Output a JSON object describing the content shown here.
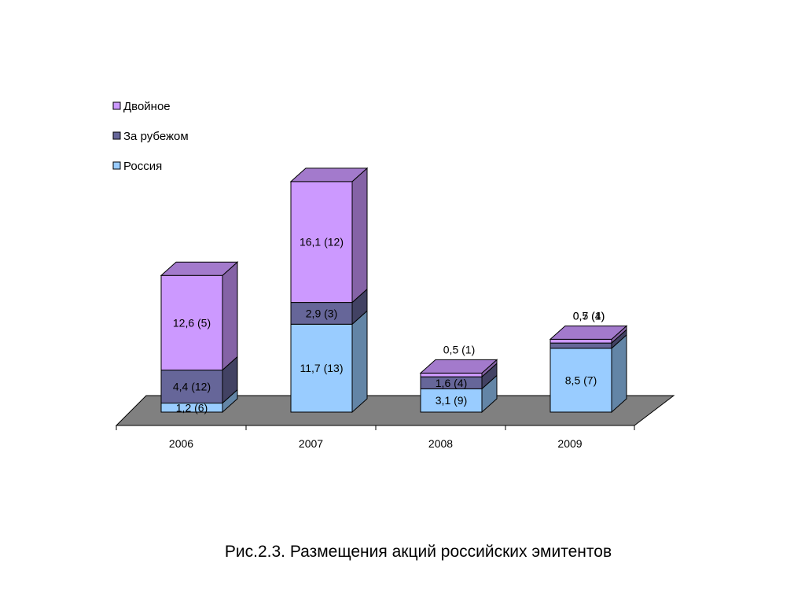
{
  "chart_data": {
    "type": "bar",
    "stacked": true,
    "three_d": true,
    "categories": [
      "2006",
      "2007",
      "2008",
      "2009"
    ],
    "series": [
      {
        "name": "Россия",
        "values": [
          1.2,
          11.7,
          3.1,
          8.5
        ],
        "labels": [
          "1,2 (6)",
          "11,7 (13)",
          "3,1 (9)",
          "8,5 (7)"
        ],
        "color": "#99ccff"
      },
      {
        "name": "За рубежом",
        "values": [
          4.4,
          2.9,
          1.6,
          0.7
        ],
        "labels": [
          "4,4 (12)",
          "2,9 (3)",
          "1,6 (4)",
          "0,7 (4)"
        ],
        "color": "#666699"
      },
      {
        "name": "Двойное",
        "values": [
          12.6,
          16.1,
          0.5,
          0.5
        ],
        "labels": [
          "12,6 (5)",
          "16,1 (12)",
          "0,5 (1)",
          "0,5 (1)"
        ],
        "color": "#cc99ff"
      }
    ],
    "legend_position": "top-left",
    "grid": false,
    "ylim": [
      0,
      33
    ]
  },
  "caption": "Рис.2.3. Размещения акций российских эмитентов"
}
